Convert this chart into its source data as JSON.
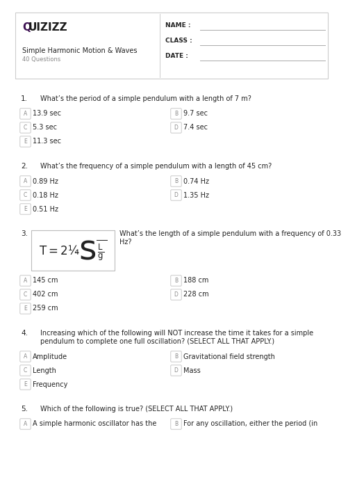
{
  "title": "Simple Harmonic Motion & Waves",
  "subtitle": "40 Questions",
  "name_label": "NAME :",
  "class_label": "CLASS :",
  "date_label": "DATE :",
  "bg_color": "#ffffff",
  "border_color": "#cccccc",
  "text_color": "#222222",
  "gray_color": "#888888",
  "purple_color": "#3d1152",
  "questions": [
    {
      "num": "1.",
      "text": "What’s the period of a simple pendulum with a length of 7 m?",
      "options": [
        {
          "label": "A",
          "text": "13.9 sec"
        },
        {
          "label": "B",
          "text": "9.7 sec"
        },
        {
          "label": "C",
          "text": "5.3 sec"
        },
        {
          "label": "D",
          "text": "7.4 sec"
        },
        {
          "label": "E",
          "text": "11.3 sec"
        }
      ],
      "formula": null
    },
    {
      "num": "2.",
      "text": "What’s the frequency of a simple pendulum with a length of 45 cm?",
      "options": [
        {
          "label": "A",
          "text": "0.89 Hz"
        },
        {
          "label": "B",
          "text": "0.74 Hz"
        },
        {
          "label": "C",
          "text": "0.18 Hz"
        },
        {
          "label": "D",
          "text": "1.35 Hz"
        },
        {
          "label": "E",
          "text": "0.51 Hz"
        }
      ],
      "formula": null
    },
    {
      "num": "3.",
      "text": "What’s the length of a simple pendulum with a frequency of 0.33\nHz?",
      "options": [
        {
          "label": "A",
          "text": "145 cm"
        },
        {
          "label": "B",
          "text": "188 cm"
        },
        {
          "label": "C",
          "text": "402 cm"
        },
        {
          "label": "D",
          "text": "228 cm"
        },
        {
          "label": "E",
          "text": "259 cm"
        }
      ],
      "formula": "$T=2\\pi\\sqrt{\\frac{L}{g}}$"
    },
    {
      "num": "4.",
      "text": "Increasing which of the following will NOT increase the time it takes for a simple\npendulum to complete one full oscillation? (SELECT ALL THAT APPLY.)",
      "options": [
        {
          "label": "A",
          "text": "Amplitude"
        },
        {
          "label": "B",
          "text": "Gravitational field strength"
        },
        {
          "label": "C",
          "text": "Length"
        },
        {
          "label": "D",
          "text": "Mass"
        },
        {
          "label": "E",
          "text": "Frequency"
        }
      ],
      "formula": null
    },
    {
      "num": "5.",
      "text": "Which of the following is true? (SELECT ALL THAT APPLY.)",
      "options": [
        {
          "label": "A",
          "text": "A simple harmonic oscillator has the"
        },
        {
          "label": "B",
          "text": "For any oscillation, either the period (in"
        }
      ],
      "formula": null,
      "partial": true
    }
  ]
}
